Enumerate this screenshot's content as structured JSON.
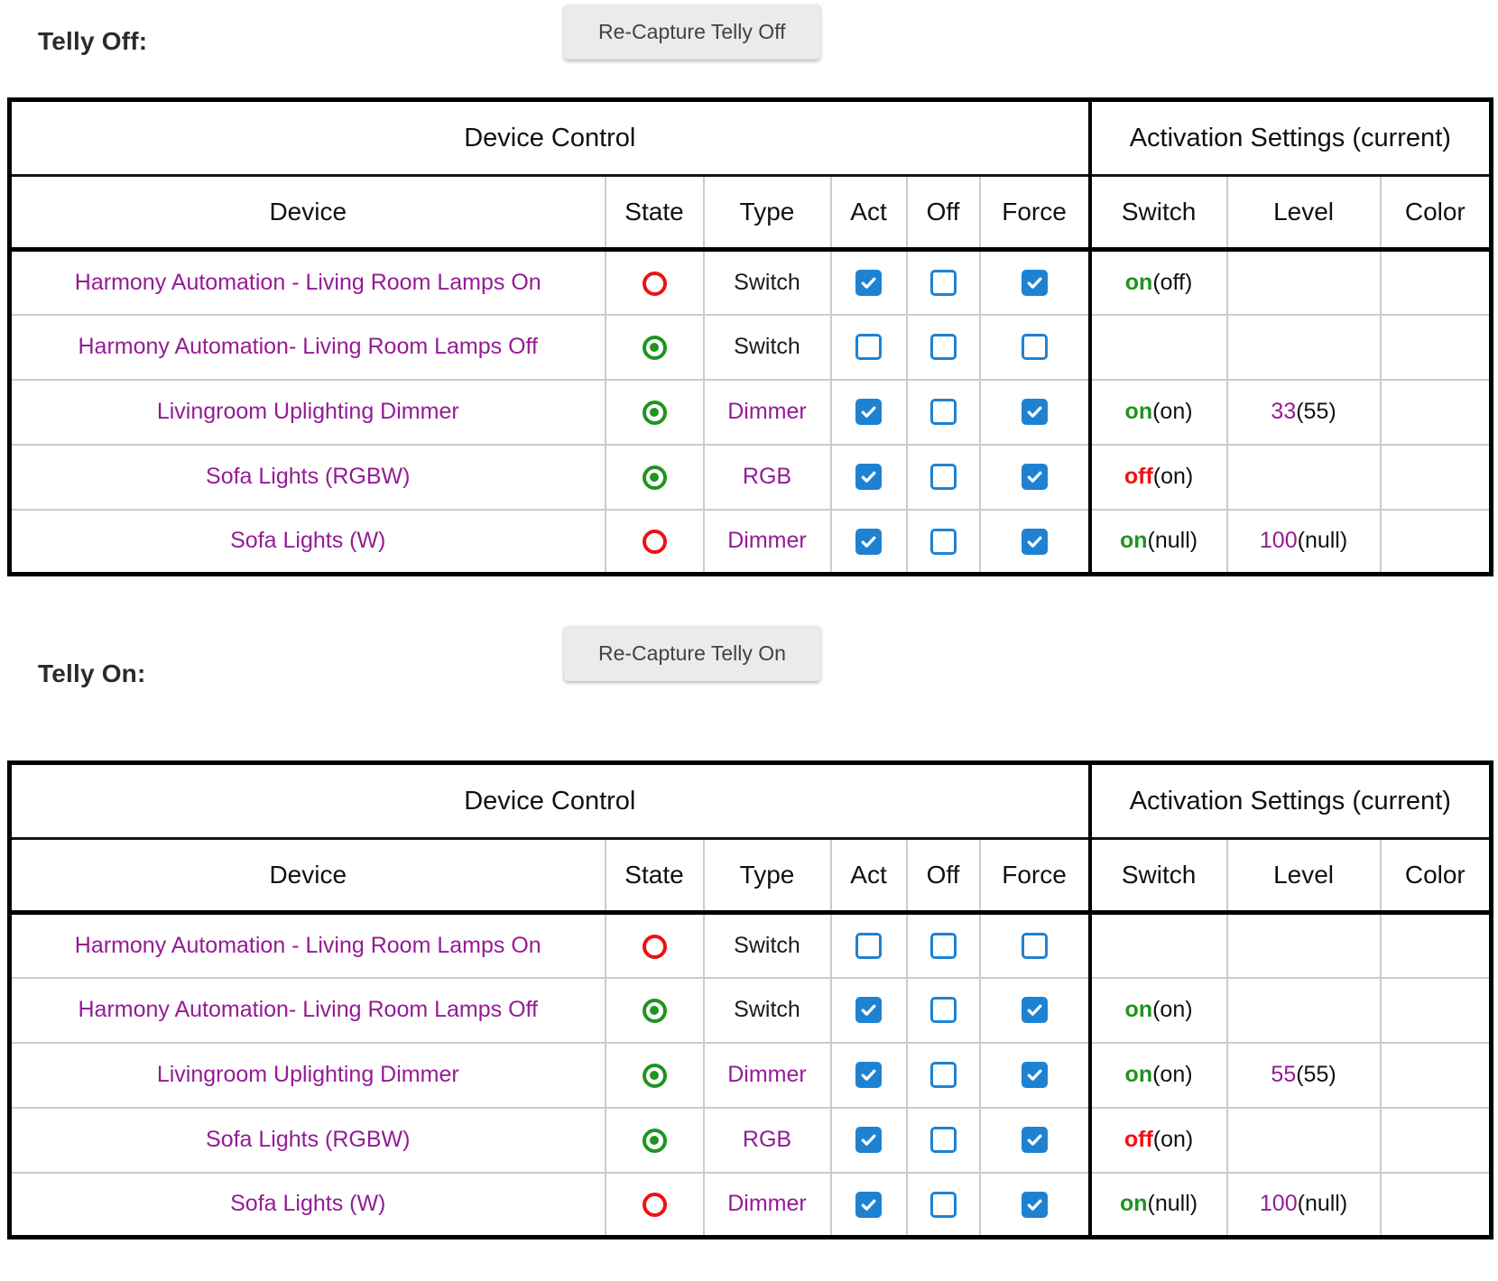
{
  "colors": {
    "purple": "#951b95",
    "green": "#1f941f",
    "red": "#ee1111",
    "checkbox_blue": "#1e82d2",
    "button_bg": "#ebebeb",
    "button_text": "#424242",
    "grid_line": "#cccccc",
    "frame": "#000000"
  },
  "headers": {
    "group_left": "Device Control",
    "group_right": "Activation Settings (current)",
    "columns": [
      "Device",
      "State",
      "Type",
      "Act",
      "Off",
      "Force",
      "Switch",
      "Level",
      "Color"
    ]
  },
  "sections": [
    {
      "label": "Telly Off:",
      "button": "Re-Capture Telly Off",
      "rows": [
        {
          "device": "Harmony Automation - Living Room Lamps On",
          "state": "off",
          "type": "Switch",
          "type_is_link": false,
          "act": true,
          "off": false,
          "force": true,
          "switch": {
            "value": "on",
            "current": "(off)"
          },
          "level": {
            "value": "",
            "current": ""
          },
          "color": ""
        },
        {
          "device": "Harmony Automation- Living Room Lamps Off",
          "state": "on",
          "type": "Switch",
          "type_is_link": false,
          "act": false,
          "off": false,
          "force": false,
          "switch": {
            "value": "",
            "current": ""
          },
          "level": {
            "value": "",
            "current": ""
          },
          "color": ""
        },
        {
          "device": "Livingroom Uplighting Dimmer",
          "state": "on",
          "type": "Dimmer",
          "type_is_link": true,
          "act": true,
          "off": false,
          "force": true,
          "switch": {
            "value": "on",
            "current": "(on)"
          },
          "level": {
            "value": "33",
            "current": "(55)"
          },
          "color": ""
        },
        {
          "device": "Sofa Lights (RGBW)",
          "state": "on",
          "type": "RGB",
          "type_is_link": true,
          "act": true,
          "off": false,
          "force": true,
          "switch": {
            "value": "off",
            "current": "(on)"
          },
          "level": {
            "value": "",
            "current": ""
          },
          "color": ""
        },
        {
          "device": "Sofa Lights (W)",
          "state": "off",
          "type": "Dimmer",
          "type_is_link": true,
          "act": true,
          "off": false,
          "force": true,
          "switch": {
            "value": "on",
            "current": "(null)"
          },
          "level": {
            "value": "100",
            "current": "(null)"
          },
          "color": ""
        }
      ]
    },
    {
      "label": "Telly On:",
      "button": "Re-Capture Telly On",
      "rows": [
        {
          "device": "Harmony Automation - Living Room Lamps On",
          "state": "off",
          "type": "Switch",
          "type_is_link": false,
          "act": false,
          "off": false,
          "force": false,
          "switch": {
            "value": "",
            "current": ""
          },
          "level": {
            "value": "",
            "current": ""
          },
          "color": ""
        },
        {
          "device": "Harmony Automation- Living Room Lamps Off",
          "state": "on",
          "type": "Switch",
          "type_is_link": false,
          "act": true,
          "off": false,
          "force": true,
          "switch": {
            "value": "on",
            "current": "(on)"
          },
          "level": {
            "value": "",
            "current": ""
          },
          "color": ""
        },
        {
          "device": "Livingroom Uplighting Dimmer",
          "state": "on",
          "type": "Dimmer",
          "type_is_link": true,
          "act": true,
          "off": false,
          "force": true,
          "switch": {
            "value": "on",
            "current": "(on)"
          },
          "level": {
            "value": "55",
            "current": "(55)"
          },
          "color": ""
        },
        {
          "device": "Sofa Lights (RGBW)",
          "state": "on",
          "type": "RGB",
          "type_is_link": true,
          "act": true,
          "off": false,
          "force": true,
          "switch": {
            "value": "off",
            "current": "(on)"
          },
          "level": {
            "value": "",
            "current": ""
          },
          "color": ""
        },
        {
          "device": "Sofa Lights (W)",
          "state": "off",
          "type": "Dimmer",
          "type_is_link": true,
          "act": true,
          "off": false,
          "force": true,
          "switch": {
            "value": "on",
            "current": "(null)"
          },
          "level": {
            "value": "100",
            "current": "(null)"
          },
          "color": ""
        }
      ]
    }
  ]
}
